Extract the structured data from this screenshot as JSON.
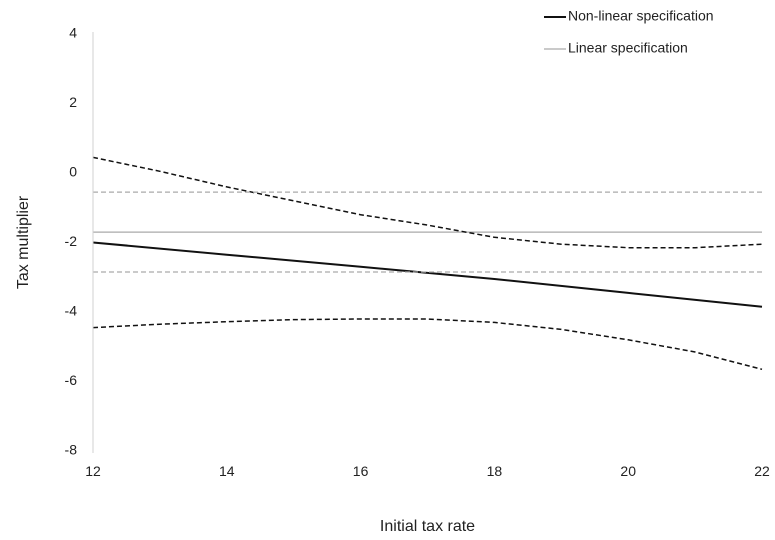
{
  "chart_data": {
    "type": "line",
    "xlabel": "Initial tax rate",
    "ylabel": "Tax multiplier",
    "xlim": [
      12,
      22
    ],
    "ylim": [
      -8,
      4
    ],
    "x_ticks": [
      "12",
      "14",
      "16",
      "18",
      "20",
      "22"
    ],
    "y_ticks": [
      "-8",
      "-6",
      "-4",
      "-2",
      "0",
      "2",
      "4"
    ],
    "grid": false,
    "legend_position": "top-right",
    "legend": [
      {
        "label": "Non-linear specification",
        "color": "#111111"
      },
      {
        "label": "Linear specification",
        "color": "#aaaaaa"
      }
    ],
    "series": [
      {
        "name": "Non-linear specification",
        "color": "#111111",
        "style": "solid",
        "x": [
          12,
          14,
          16,
          18,
          20,
          22
        ],
        "y": [
          -2.0,
          -2.35,
          -2.7,
          -3.05,
          -3.45,
          -3.85
        ]
      },
      {
        "name": "Linear specification",
        "color": "#aaaaaa",
        "style": "solid",
        "x": [
          12,
          22
        ],
        "y": [
          -1.7,
          -1.7
        ]
      },
      {
        "color": "#111111",
        "style": "dashed",
        "x": [
          12,
          13,
          14,
          15,
          16,
          17,
          18,
          19,
          20,
          21,
          22
        ],
        "y": [
          0.45,
          0.05,
          -0.4,
          -0.8,
          -1.2,
          -1.5,
          -1.85,
          -2.05,
          -2.15,
          -2.15,
          -2.05
        ]
      },
      {
        "color": "#111111",
        "style": "dashed",
        "x": [
          12,
          13,
          14,
          15,
          16,
          17,
          18,
          19,
          20,
          21,
          22
        ],
        "y": [
          -4.45,
          -4.35,
          -4.28,
          -4.22,
          -4.2,
          -4.2,
          -4.3,
          -4.5,
          -4.8,
          -5.15,
          -5.65
        ]
      },
      {
        "color": "#aaaaaa",
        "style": "dashed",
        "x": [
          12,
          22
        ],
        "y": [
          -0.55,
          -0.55
        ]
      },
      {
        "color": "#aaaaaa",
        "style": "dashed",
        "x": [
          12,
          22
        ],
        "y": [
          -2.85,
          -2.85
        ]
      }
    ]
  }
}
